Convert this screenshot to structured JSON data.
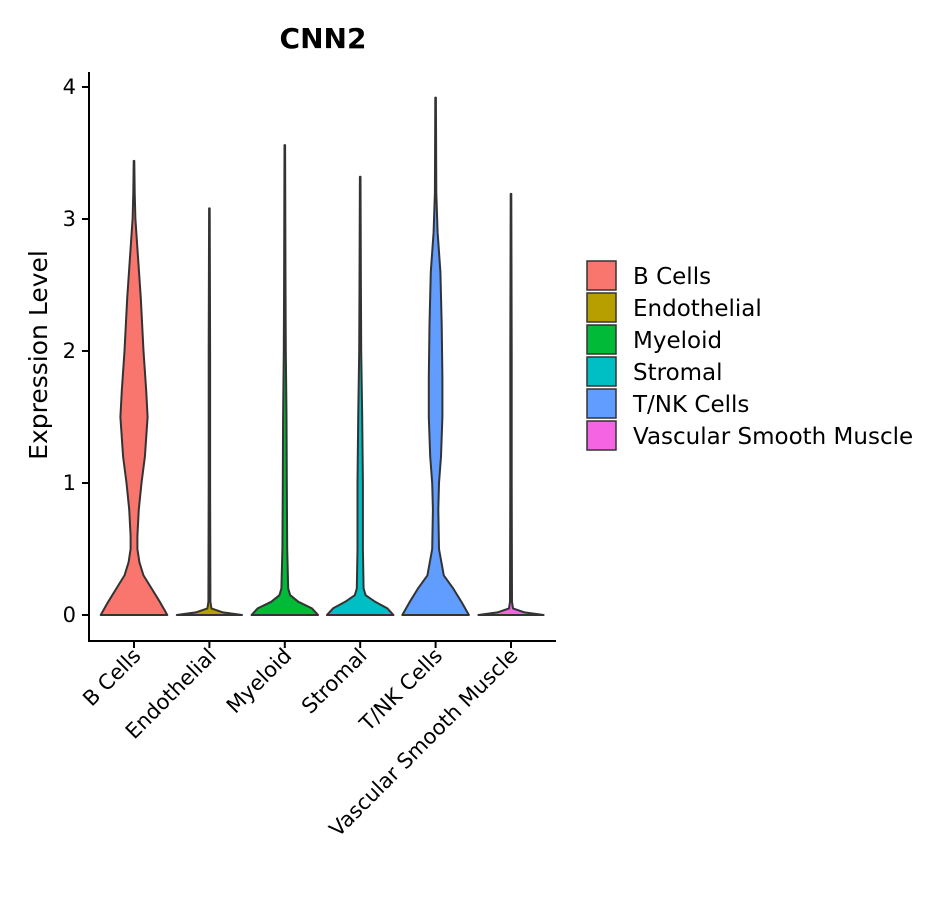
{
  "chart_data": {
    "type": "violin",
    "title": "CNN2",
    "xlabel": "",
    "ylabel": "Expression Level",
    "ylim": [
      -0.2,
      4.12
    ],
    "yticks": [
      0,
      1,
      2,
      3,
      4
    ],
    "categories": [
      "B Cells",
      "Endothelial",
      "Myeloid",
      "Stromal",
      "T/NK Cells",
      "Vascular Smooth Muscle"
    ],
    "legend": {
      "position": "right",
      "entries": [
        "B Cells",
        "Endothelial",
        "Myeloid",
        "Stromal",
        "T/NK Cells",
        "Vascular Smooth Muscle"
      ]
    },
    "series": [
      {
        "name": "B Cells",
        "color": "#F8766D",
        "max": 3.44,
        "profile": [
          [
            0,
            0.49
          ],
          [
            0.1,
            0.38
          ],
          [
            0.2,
            0.26
          ],
          [
            0.3,
            0.14
          ],
          [
            0.4,
            0.08
          ],
          [
            0.5,
            0.05
          ],
          [
            0.6,
            0.05
          ],
          [
            0.8,
            0.07
          ],
          [
            1.0,
            0.11
          ],
          [
            1.2,
            0.16
          ],
          [
            1.5,
            0.2
          ],
          [
            1.7,
            0.18
          ],
          [
            2.0,
            0.14
          ],
          [
            2.4,
            0.1
          ],
          [
            2.7,
            0.06
          ],
          [
            3.0,
            0.02
          ],
          [
            3.2,
            0.01
          ],
          [
            3.44,
            0.005
          ]
        ]
      },
      {
        "name": "Endothelial",
        "color": "#B79F00",
        "max": 3.08,
        "profile": [
          [
            0,
            0.48
          ],
          [
            0.02,
            0.2
          ],
          [
            0.05,
            0.03
          ],
          [
            0.1,
            0.015
          ],
          [
            1.0,
            0.01
          ],
          [
            2.0,
            0.01
          ],
          [
            3.08,
            0.005
          ]
        ]
      },
      {
        "name": "Myeloid",
        "color": "#00BA38",
        "max": 3.56,
        "profile": [
          [
            0,
            0.49
          ],
          [
            0.05,
            0.4
          ],
          [
            0.1,
            0.2
          ],
          [
            0.15,
            0.08
          ],
          [
            0.2,
            0.05
          ],
          [
            0.5,
            0.035
          ],
          [
            1.0,
            0.03
          ],
          [
            1.5,
            0.025
          ],
          [
            2.0,
            0.015
          ],
          [
            2.5,
            0.01
          ],
          [
            3.56,
            0.005
          ]
        ]
      },
      {
        "name": "Stromal",
        "color": "#00BFC4",
        "max": 3.32,
        "profile": [
          [
            0,
            0.49
          ],
          [
            0.05,
            0.4
          ],
          [
            0.1,
            0.22
          ],
          [
            0.15,
            0.08
          ],
          [
            0.2,
            0.05
          ],
          [
            0.5,
            0.04
          ],
          [
            1.0,
            0.04
          ],
          [
            1.5,
            0.03
          ],
          [
            2.0,
            0.015
          ],
          [
            2.5,
            0.01
          ],
          [
            3.32,
            0.005
          ]
        ]
      },
      {
        "name": "T/NK Cells",
        "color": "#619CFF",
        "max": 3.92,
        "profile": [
          [
            0,
            0.49
          ],
          [
            0.1,
            0.38
          ],
          [
            0.2,
            0.26
          ],
          [
            0.3,
            0.12
          ],
          [
            0.5,
            0.05
          ],
          [
            0.8,
            0.04
          ],
          [
            1.0,
            0.05
          ],
          [
            1.2,
            0.08
          ],
          [
            1.5,
            0.1
          ],
          [
            1.8,
            0.1
          ],
          [
            2.2,
            0.09
          ],
          [
            2.6,
            0.07
          ],
          [
            2.9,
            0.03
          ],
          [
            3.2,
            0.01
          ],
          [
            3.92,
            0.005
          ]
        ]
      },
      {
        "name": "Vascular Smooth Muscle",
        "color": "#F564E3",
        "max": 3.19,
        "profile": [
          [
            0,
            0.48
          ],
          [
            0.02,
            0.2
          ],
          [
            0.05,
            0.03
          ],
          [
            0.1,
            0.015
          ],
          [
            1.0,
            0.01
          ],
          [
            2.0,
            0.01
          ],
          [
            3.19,
            0.005
          ]
        ]
      }
    ]
  }
}
